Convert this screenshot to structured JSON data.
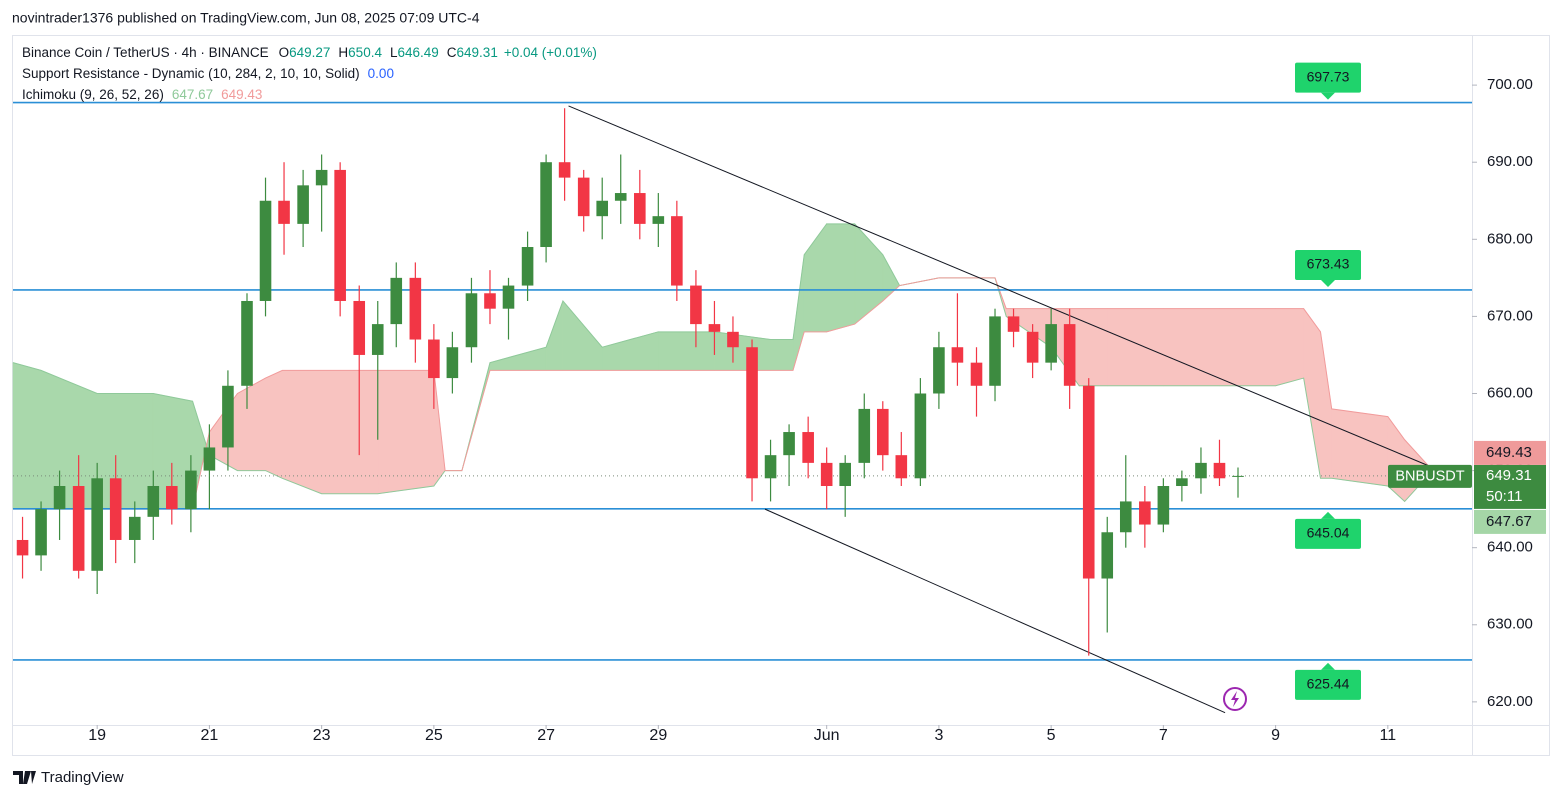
{
  "header": {
    "published": "novintrader1376 published on TradingView.com, Jun 08, 2025 07:09 UTC-4"
  },
  "legend": {
    "symbol": "Binance Coin / TetherUS · 4h · BINANCE",
    "o_label": "O",
    "h_label": "H",
    "l_label": "L",
    "c_label": "C",
    "change": "+0.04 (+0.01%)",
    "sr_name": "Support Resistance - Dynamic (10, 284, 2, 10, 10, Solid)",
    "sr_value": "0.00",
    "ichimoku_name": "Ichimoku (9, 26, 52, 26)"
  },
  "chart_data": {
    "type": "candlestick",
    "x": [
      -0.33,
      0,
      0.33,
      0.67,
      1,
      1.33,
      1.67,
      2,
      2.33,
      2.67,
      3,
      3.33,
      3.67,
      4,
      4.33,
      4.67,
      5,
      5.33,
      5.67,
      6,
      6.33,
      6.67,
      7,
      7.33,
      7.67,
      8,
      8.33,
      8.67,
      9,
      9.33,
      9.67,
      10,
      10.33,
      10.67,
      11,
      11.33,
      11.67,
      12,
      12.33,
      12.67,
      13,
      13.33,
      13.67,
      14,
      14.33,
      14.67,
      15,
      15.33,
      15.67,
      16,
      16.33,
      16.67,
      17,
      17.33,
      17.67,
      18,
      18.33,
      18.67,
      19,
      19.33,
      19.67,
      20,
      20.33,
      20.67,
      21,
      21.33
    ],
    "open": [
      641,
      639,
      645,
      648,
      637,
      649,
      641,
      644,
      648,
      645,
      650,
      653,
      661,
      672,
      685,
      682,
      687,
      689,
      672,
      665,
      669,
      675,
      667,
      662,
      666,
      673,
      671,
      674,
      679,
      690,
      688,
      683,
      685,
      686,
      682,
      683,
      674,
      669,
      668,
      666,
      649,
      652,
      655,
      651,
      648,
      651,
      658,
      652,
      649,
      660,
      666,
      664,
      661,
      670,
      668,
      664,
      669,
      661,
      636,
      642,
      646,
      643,
      648,
      649,
      651,
      649.27
    ],
    "high": [
      644,
      646,
      650,
      652,
      651,
      652,
      646,
      650,
      651,
      652,
      656,
      663,
      673,
      688,
      690,
      689,
      691,
      690,
      674,
      672,
      677,
      677,
      669,
      668,
      675,
      676,
      675,
      681,
      691,
      697,
      689,
      688,
      691,
      689,
      686,
      685,
      676,
      672,
      670,
      667,
      654,
      656,
      657,
      653,
      652,
      660,
      659,
      655,
      662,
      668,
      673,
      666,
      671,
      671,
      669,
      671,
      671,
      662,
      644,
      652,
      648,
      649,
      650,
      653,
      654,
      650.4
    ],
    "low": [
      636,
      637,
      641,
      636,
      634,
      638,
      638,
      641,
      643,
      642,
      645,
      650,
      658,
      670,
      678,
      679,
      681,
      670,
      652,
      654,
      666,
      664,
      658,
      660,
      664,
      669,
      667,
      672,
      677,
      685,
      681,
      680,
      682,
      680,
      679,
      672,
      666,
      665,
      664,
      646,
      646,
      648,
      649,
      645,
      644,
      649,
      650,
      648,
      648,
      658,
      661,
      657,
      659,
      666,
      662,
      663,
      658,
      626,
      629,
      640,
      640,
      642,
      646,
      647,
      648,
      646.49
    ],
    "close": [
      639,
      645,
      648,
      637,
      649,
      641,
      644,
      648,
      645,
      650,
      653,
      661,
      672,
      685,
      682,
      687,
      689,
      672,
      665,
      669,
      675,
      667,
      662,
      666,
      673,
      671,
      674,
      679,
      690,
      688,
      683,
      685,
      686,
      682,
      683,
      674,
      669,
      668,
      666,
      649,
      652,
      655,
      651,
      648,
      651,
      658,
      652,
      649,
      660,
      666,
      664,
      661,
      670,
      668,
      664,
      669,
      661,
      636,
      642,
      646,
      643,
      648,
      649,
      651,
      649,
      649.31
    ],
    "up_color": "#3d8b40",
    "down_color": "#f23645",
    "xlim": [
      -0.5,
      25.5
    ],
    "xticks": [
      {
        "value": 1,
        "label": "19"
      },
      {
        "value": 3,
        "label": "21"
      },
      {
        "value": 5,
        "label": "23"
      },
      {
        "value": 7,
        "label": "25"
      },
      {
        "value": 9,
        "label": "27"
      },
      {
        "value": 11,
        "label": "29"
      },
      {
        "value": 14,
        "label": "Jun"
      },
      {
        "value": 16,
        "label": "3"
      },
      {
        "value": 18,
        "label": "5"
      },
      {
        "value": 20,
        "label": "7"
      },
      {
        "value": 22,
        "label": "9"
      },
      {
        "value": 24,
        "label": "11"
      }
    ],
    "ylim": [
      617,
      706.5
    ],
    "yticks": [
      {
        "value": 620,
        "label": "620.00"
      },
      {
        "value": 630,
        "label": "630.00"
      },
      {
        "value": 640,
        "label": "640.00"
      },
      {
        "value": 650,
        "label": "650.00"
      },
      {
        "value": 660,
        "label": "660.00"
      },
      {
        "value": 670,
        "label": "670.00"
      },
      {
        "value": 680,
        "label": "680.00"
      },
      {
        "value": 690,
        "label": "690.00"
      },
      {
        "value": 700,
        "label": "700.00"
      }
    ],
    "cloud": {
      "x": [
        -0.5,
        0,
        1,
        2,
        2.7,
        3,
        3.5,
        4,
        4.3,
        5,
        6,
        7,
        7.2,
        7.5,
        8,
        9,
        9.3,
        10,
        11,
        12,
        13,
        13.4,
        13.6,
        14,
        14.5,
        15,
        15.3,
        16,
        17,
        17.2,
        18,
        18.5,
        19,
        20,
        21,
        22,
        22.5,
        22.8,
        23,
        24,
        24.3,
        24.8
      ],
      "span_a": [
        664,
        663,
        660,
        660,
        659,
        652,
        650,
        650,
        649,
        647,
        647,
        648,
        650,
        650,
        664,
        666,
        672,
        666,
        668,
        668,
        667,
        667,
        678,
        682,
        682,
        678,
        674,
        675,
        675,
        670,
        666,
        661,
        661,
        661,
        661,
        661,
        662,
        649,
        649,
        648,
        646,
        650
      ],
      "span_b": [
        645,
        645,
        645,
        645,
        645,
        655,
        660,
        662,
        663,
        663,
        663,
        663,
        650,
        650,
        663,
        663,
        663,
        663,
        663,
        663,
        663,
        663,
        668,
        668,
        669,
        672,
        674,
        675,
        675,
        671,
        671,
        671,
        671,
        671,
        671,
        671,
        671,
        668,
        658,
        657,
        654,
        650
      ],
      "bull_color": "#a9d8ab",
      "bear_color": "#f8c3c0"
    },
    "ichimoku_last": [
      647.67,
      649.43
    ],
    "levels": [
      697.73,
      673.43,
      645.04,
      625.44
    ],
    "level_color": "#2a8fd6",
    "level_label_color": "#1fd36c",
    "trendlines": [
      {
        "x": [
          9.4,
          24.8
        ],
        "y": [
          697.3,
          650.4
        ]
      },
      {
        "x": [
          12.9,
          21.1
        ],
        "y": [
          645,
          618.6
        ]
      }
    ],
    "last_label": {
      "symbol": "BNBUSDT",
      "countdown": "50:11"
    }
  },
  "footer": {
    "brand": "TradingView"
  }
}
